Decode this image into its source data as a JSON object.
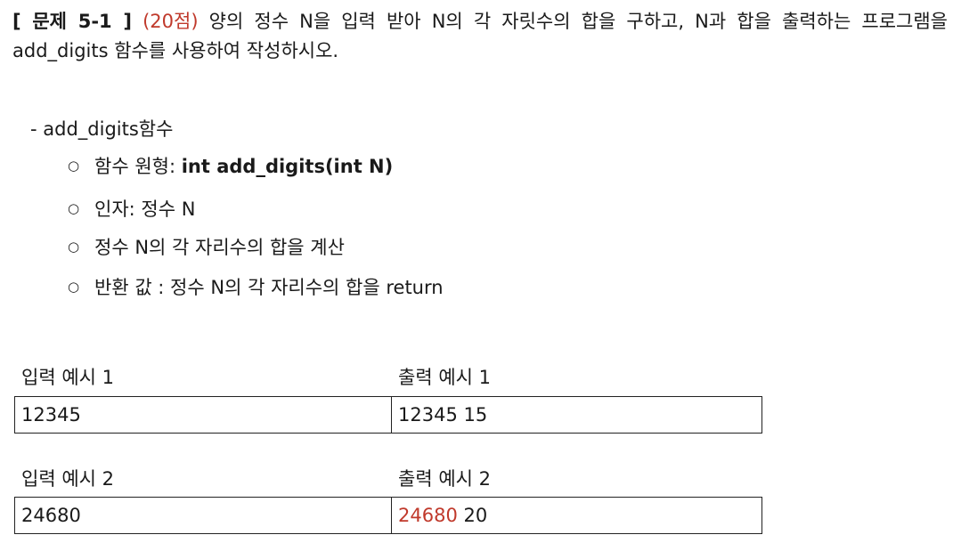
{
  "problem": {
    "bracket_open": "[ 문제 5-1 ]",
    "points": "(20점)",
    "text": " 양의 정수 N을 입력 받아 N의 각 자릿수의 합을 구하고, N과 합을 출력하는 프로그램을 add_digits 함수를 사용하여 작성하시오."
  },
  "function_section": {
    "title": "-  add_digits함수",
    "bullet_char": "○",
    "items": [
      {
        "label": "함수 원형: ",
        "bold": "int add_digits(int N)"
      },
      {
        "label": "인자: 정수 N",
        "bold": ""
      },
      {
        "label": "정수 N의 각 자리수의 합을 계산",
        "bold": ""
      },
      {
        "label": "반환 값 : 정수 N의 각 자리수의 합을 return",
        "bold": ""
      }
    ]
  },
  "examples": [
    {
      "input_label": "입력 예시 1",
      "output_label": "출력 예시 1",
      "input_value": "12345",
      "output_first": "12345",
      "output_second": " 15",
      "output_first_red": false
    },
    {
      "input_label": "입력 예시 2",
      "output_label": "출력 예시 2",
      "input_value": "24680",
      "output_first": "24680",
      "output_second": " 20",
      "output_first_red": true
    }
  ],
  "colors": {
    "accent_red": "#c0392b",
    "text": "#1a1a1a",
    "border": "#222222"
  }
}
